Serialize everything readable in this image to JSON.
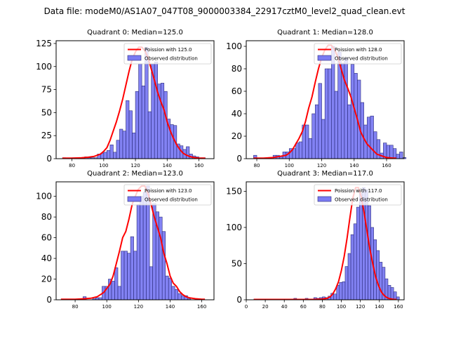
{
  "suptitle": "Data file: modeM0/AS1A07_047T08_9000003384_22917cztM0_level2_quad_clean.evt",
  "colors": {
    "bar_fill": "#7b7bf2",
    "bar_edge": "#2a2a7a",
    "fit_line": "#ff0000"
  },
  "chart_data": [
    {
      "type": "bar",
      "title": "Quadrant 0: Median=125.0",
      "xlabel": "",
      "ylabel": "",
      "xlim": [
        70,
        169.5
      ],
      "ylim": [
        0,
        128
      ],
      "xticks": [
        80,
        100,
        120,
        140,
        160
      ],
      "yticks": [
        0,
        25,
        50,
        75,
        100,
        125
      ],
      "legend": {
        "position": "top-right",
        "entries": [
          "Poission with 125.0",
          "Observed distribution"
        ]
      },
      "bin_start": 74,
      "bin_width": 2,
      "values": [
        1,
        0,
        0,
        1,
        1,
        0,
        1,
        2,
        1,
        1,
        1,
        5,
        6,
        7,
        9,
        15,
        7,
        20,
        32,
        30,
        63,
        52,
        28,
        73,
        103,
        79,
        121,
        51,
        103,
        105,
        81,
        82,
        73,
        43,
        37,
        36,
        16,
        14,
        10,
        13,
        5,
        3,
        2,
        1,
        1
      ],
      "fit": {
        "label": "Poission with 125.0",
        "x": [
          74,
          80,
          86,
          90,
          94,
          98,
          100,
          102,
          104,
          106,
          108,
          110,
          112,
          114,
          116,
          118,
          120,
          122,
          124,
          126,
          128,
          130,
          132,
          134,
          136,
          138,
          140,
          142,
          144,
          146,
          148,
          150,
          152,
          154,
          156,
          158,
          160,
          164
        ],
        "y": [
          0.5,
          0.5,
          1,
          1.5,
          2.5,
          5,
          8,
          12,
          20,
          30,
          40,
          52,
          65,
          80,
          95,
          108,
          116,
          121,
          121,
          117,
          109,
          97,
          85,
          72,
          62,
          53,
          40,
          30,
          22,
          15,
          10,
          6,
          4,
          2.5,
          1.5,
          1,
          0.5,
          0.5
        ]
      }
    },
    {
      "type": "bar",
      "title": "Quadrant 1: Median=128.0",
      "xlabel": "",
      "ylabel": "",
      "xlim": [
        73.5,
        170.8
      ],
      "ylim": [
        0,
        105
      ],
      "xticks": [
        80,
        100,
        120,
        140,
        160
      ],
      "yticks": [
        0,
        20,
        40,
        60,
        80,
        100
      ],
      "legend": {
        "position": "top-right",
        "entries": [
          "Poission with 128.0",
          "Observed distribution"
        ]
      },
      "bin_start": 78,
      "bin_width": 2,
      "values": [
        3,
        0,
        0,
        0,
        0,
        0,
        3,
        3,
        2,
        6,
        6,
        9,
        9,
        14,
        15,
        30,
        30,
        18,
        40,
        48,
        67,
        35,
        80,
        80,
        100,
        60,
        95,
        85,
        90,
        48,
        84,
        76,
        70,
        50,
        30,
        37,
        38,
        24,
        17,
        5,
        14,
        12,
        12,
        9,
        4,
        6,
        1
      ],
      "fit": {
        "label": "Poission with 128.0",
        "x": [
          78,
          84,
          90,
          94,
          98,
          100,
          102,
          104,
          106,
          108,
          110,
          112,
          114,
          116,
          118,
          120,
          122,
          124,
          126,
          128,
          130,
          132,
          134,
          136,
          138,
          140,
          142,
          144,
          146,
          148,
          150,
          152,
          154,
          156,
          158,
          160,
          164,
          166
        ],
        "y": [
          0.5,
          0.5,
          1,
          2,
          3,
          5,
          8,
          13,
          18,
          24,
          33,
          45,
          55,
          68,
          80,
          90,
          97,
          101,
          101,
          97,
          90,
          80,
          70,
          63,
          55,
          45,
          35,
          24,
          18,
          13,
          10,
          7,
          4,
          3,
          2,
          1,
          0.5,
          0.5
        ]
      }
    },
    {
      "type": "bar",
      "title": "Quadrant 2: Median=123.0",
      "xlabel": "",
      "ylabel": "",
      "xlim": [
        68,
        167.7
      ],
      "ylim": [
        0,
        114
      ],
      "xticks": [
        80,
        100,
        120,
        140,
        160
      ],
      "yticks": [
        0,
        20,
        40,
        60,
        80,
        100
      ],
      "legend": {
        "position": "top-right",
        "entries": [
          "Poission with 123.0",
          "Observed distribution"
        ]
      },
      "bin_start": 71,
      "bin_width": 2,
      "values": [
        0,
        0,
        0,
        0,
        0,
        0,
        0,
        3,
        0,
        0,
        1,
        2,
        2,
        13,
        13,
        20,
        18,
        31,
        13,
        47,
        47,
        45,
        61,
        47,
        92,
        100,
        104,
        110,
        32,
        93,
        85,
        80,
        66,
        23,
        21,
        13,
        10,
        6,
        4,
        4,
        1
      ],
      "fit": {
        "label": "Poission with 123.0",
        "x": [
          71,
          80,
          86,
          90,
          94,
          98,
          100,
          102,
          104,
          106,
          108,
          110,
          112,
          114,
          116,
          118,
          120,
          122,
          124,
          126,
          128,
          130,
          132,
          134,
          136,
          138,
          140,
          142,
          144,
          146,
          148,
          150,
          152,
          156,
          160,
          162
        ],
        "y": [
          0.5,
          0.5,
          1,
          1.5,
          3,
          7,
          11,
          15,
          23,
          35,
          47,
          60,
          66,
          78,
          92,
          100,
          107,
          110,
          110,
          103,
          92,
          80,
          70,
          60,
          45,
          35,
          23,
          16,
          13,
          8,
          5,
          3,
          2,
          1,
          0.5,
          0.5
        ]
      }
    },
    {
      "type": "bar",
      "title": "Quadrant 3: Median=117.0",
      "xlabel": "",
      "ylabel": "",
      "xlim": [
        0,
        166
      ],
      "ylim": [
        0,
        163
      ],
      "xticks": [
        0,
        20,
        40,
        60,
        80,
        100,
        120,
        140,
        160
      ],
      "yticks": [
        0,
        50,
        100,
        150
      ],
      "legend": {
        "position": "top-right",
        "entries": [
          "Poission with 117.0",
          "Observed distribution"
        ]
      },
      "bin_start": 8,
      "bin_width": 3,
      "values": [
        1,
        0,
        0,
        0,
        0,
        0,
        0,
        0,
        0,
        1,
        0,
        0,
        0,
        0,
        2,
        0,
        0,
        1,
        2,
        1,
        0,
        3,
        2,
        3,
        4,
        3,
        5,
        9,
        8,
        20,
        24,
        25,
        46,
        64,
        90,
        105,
        128,
        147,
        155,
        152,
        130,
        100,
        83,
        68,
        52,
        45,
        29,
        20,
        17,
        11,
        4
      ],
      "fit": {
        "label": "Poission with 117.0",
        "x": [
          8,
          40,
          70,
          80,
          85,
          88,
          91,
          94,
          97,
          100,
          103,
          106,
          109,
          112,
          115,
          118,
          121,
          124,
          127,
          130,
          133,
          136,
          139,
          142,
          145,
          148,
          151,
          155,
          158
        ],
        "y": [
          0.5,
          0.5,
          0.5,
          1,
          2,
          4,
          8,
          15,
          25,
          40,
          60,
          85,
          113,
          140,
          155,
          155,
          142,
          120,
          95,
          70,
          50,
          32,
          20,
          11,
          6,
          3,
          1.5,
          0.5,
          0.5
        ]
      }
    }
  ]
}
